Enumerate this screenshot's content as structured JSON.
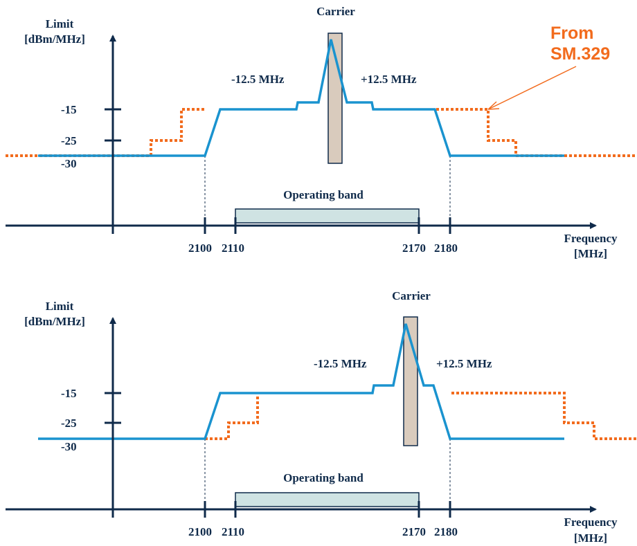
{
  "colors": {
    "axis": "#0f2a4a",
    "mask": "#1a93cf",
    "sm329": "#f26b1d",
    "carrier_fill": "#d9cbbd",
    "band_fill": "#cfe3e3"
  },
  "panels": [
    {
      "y_axis_label_line1": "Limit",
      "y_axis_label_line2": "[dBm/MHz]",
      "y_ticks": [
        "-15",
        "-25",
        "-30"
      ],
      "carrier_label": "Carrier",
      "offset_minus_label": "-12.5 MHz",
      "offset_plus_label": "+12.5 MHz",
      "band_label": "Operating band",
      "x_ticks": [
        "2100",
        "2110",
        "2170",
        "2180"
      ],
      "x_axis_label_line1": "Frequency",
      "x_axis_label_line2": "[MHz]",
      "annotation_line1": "From",
      "annotation_line2": "SM.329"
    },
    {
      "y_axis_label_line1": "Limit",
      "y_axis_label_line2": "[dBm/MHz]",
      "y_ticks": [
        "-15",
        "-25",
        "-30"
      ],
      "carrier_label": "Carrier",
      "offset_minus_label": "-12.5 MHz",
      "offset_plus_label": "+12.5 MHz",
      "band_label": "Operating band",
      "x_ticks": [
        "2100",
        "2110",
        "2170",
        "2180"
      ],
      "x_axis_label_line1": "Frequency",
      "x_axis_label_line2": "[MHz]"
    }
  ]
}
